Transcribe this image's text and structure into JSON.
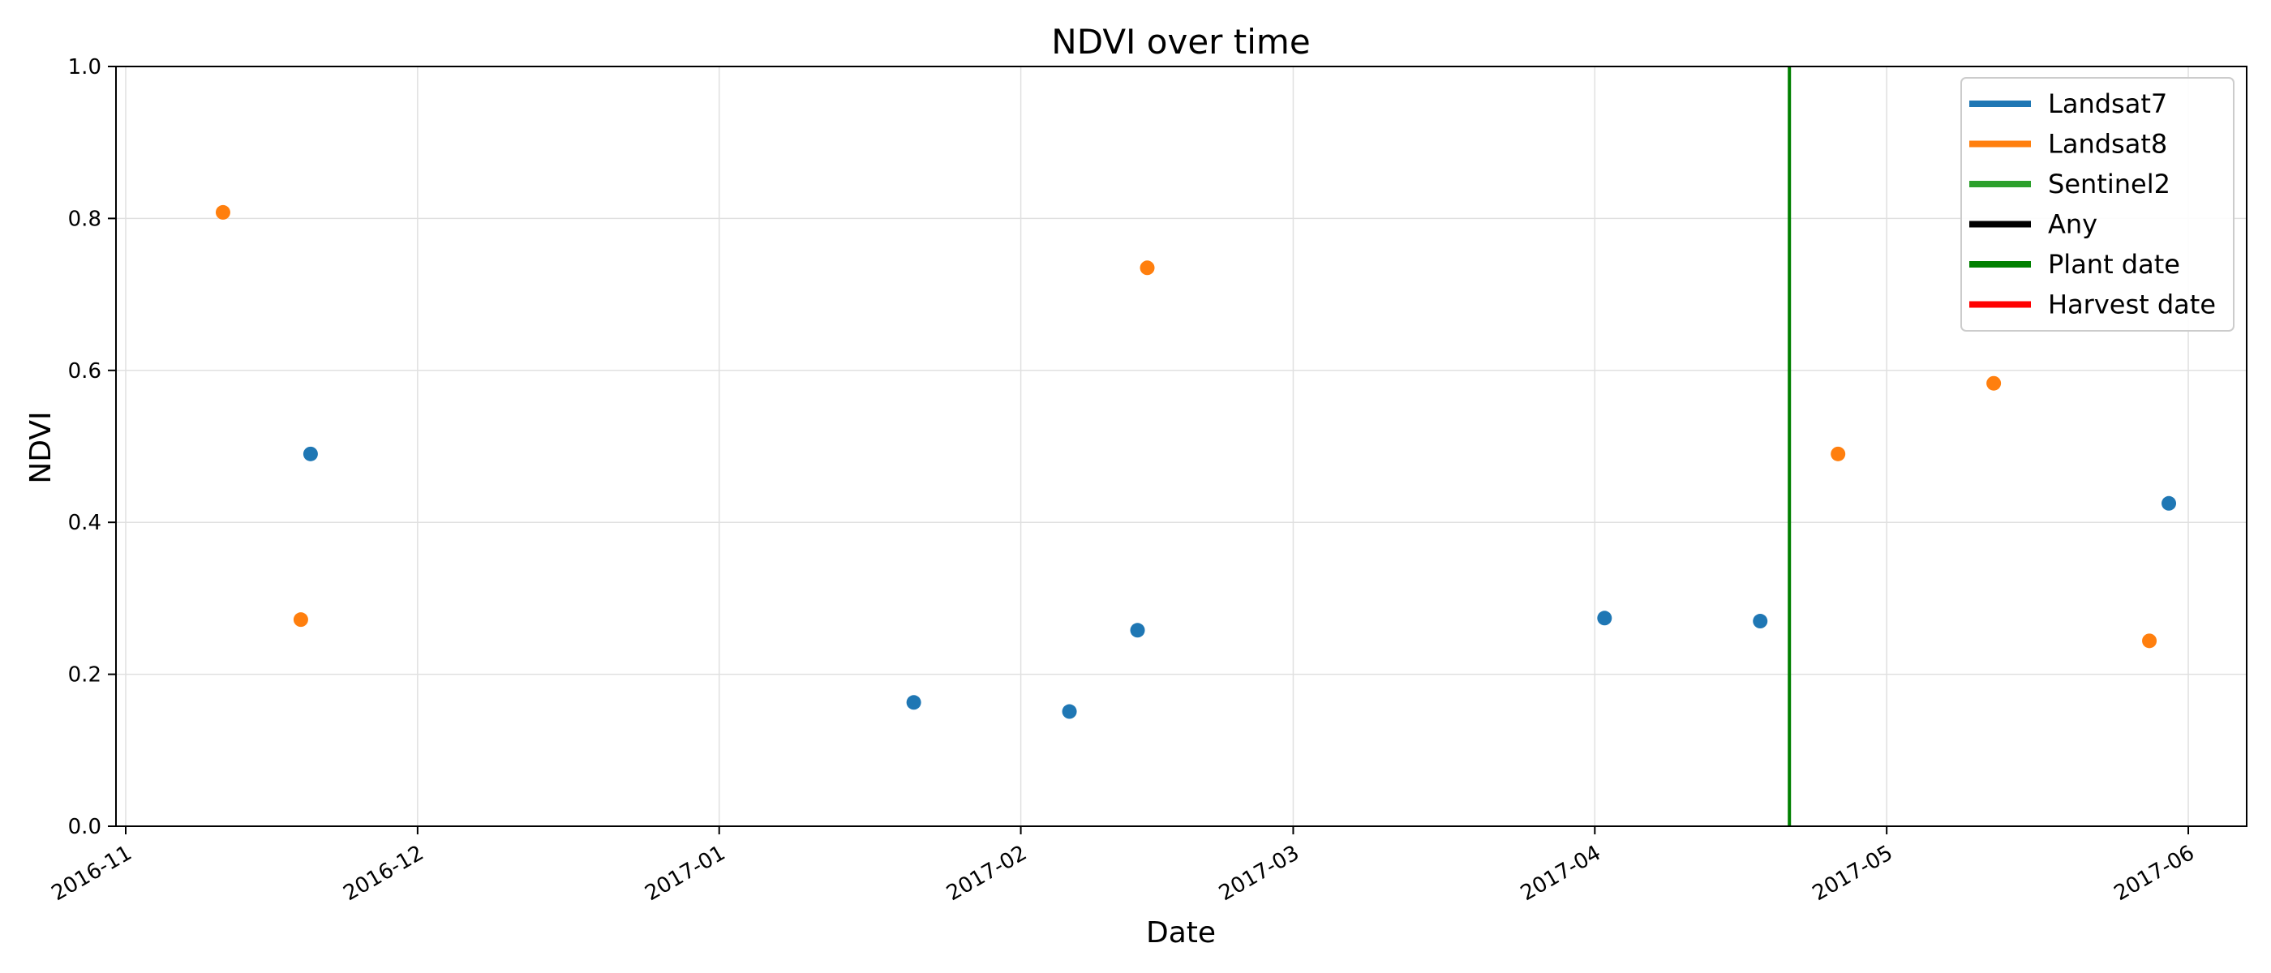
{
  "chart_data": {
    "type": "scatter",
    "title": "NDVI over time",
    "xlabel": "Date",
    "ylabel": "NDVI",
    "xlim": [
      "2016-10-31",
      "2017-06-07"
    ],
    "ylim": [
      0,
      1
    ],
    "grid": true,
    "legend_position": "top-right",
    "x_ticks": [
      "2016-11",
      "2016-12",
      "2017-01",
      "2017-02",
      "2017-03",
      "2017-04",
      "2017-05",
      "2017-06"
    ],
    "y_ticks": [
      "0.0",
      "0.2",
      "0.4",
      "0.6",
      "0.8",
      "1.0"
    ],
    "series": [
      {
        "name": "Landsat7",
        "color": "#1f77b4",
        "points": [
          {
            "x": "2016-11-20",
            "y": 0.49
          },
          {
            "x": "2017-01-21",
            "y": 0.163
          },
          {
            "x": "2017-02-06",
            "y": 0.151
          },
          {
            "x": "2017-02-13",
            "y": 0.258
          },
          {
            "x": "2017-04-02",
            "y": 0.274
          },
          {
            "x": "2017-04-18",
            "y": 0.27
          },
          {
            "x": "2017-05-30",
            "y": 0.425
          }
        ]
      },
      {
        "name": "Landsat8",
        "color": "#ff7f0e",
        "points": [
          {
            "x": "2016-11-11",
            "y": 0.808
          },
          {
            "x": "2016-11-19",
            "y": 0.272
          },
          {
            "x": "2017-02-14",
            "y": 0.735
          },
          {
            "x": "2017-04-26",
            "y": 0.49
          },
          {
            "x": "2017-05-12",
            "y": 0.583
          },
          {
            "x": "2017-05-28",
            "y": 0.244
          }
        ]
      },
      {
        "name": "Sentinel2",
        "color": "#2ca02c",
        "points": []
      },
      {
        "name": "Any",
        "color": "#000000",
        "points": []
      }
    ],
    "vertical_lines": [
      {
        "name": "Plant date",
        "color": "#008000",
        "x": "2017-04-21"
      },
      {
        "name": "Harvest date",
        "color": "#ff0000",
        "x": null
      }
    ],
    "legend": [
      {
        "label": "Landsat7",
        "color": "#1f77b4"
      },
      {
        "label": "Landsat8",
        "color": "#ff7f0e"
      },
      {
        "label": "Sentinel2",
        "color": "#2ca02c"
      },
      {
        "label": "Any",
        "color": "#000000"
      },
      {
        "label": "Plant date",
        "color": "#008000"
      },
      {
        "label": "Harvest date",
        "color": "#ff0000"
      }
    ]
  }
}
